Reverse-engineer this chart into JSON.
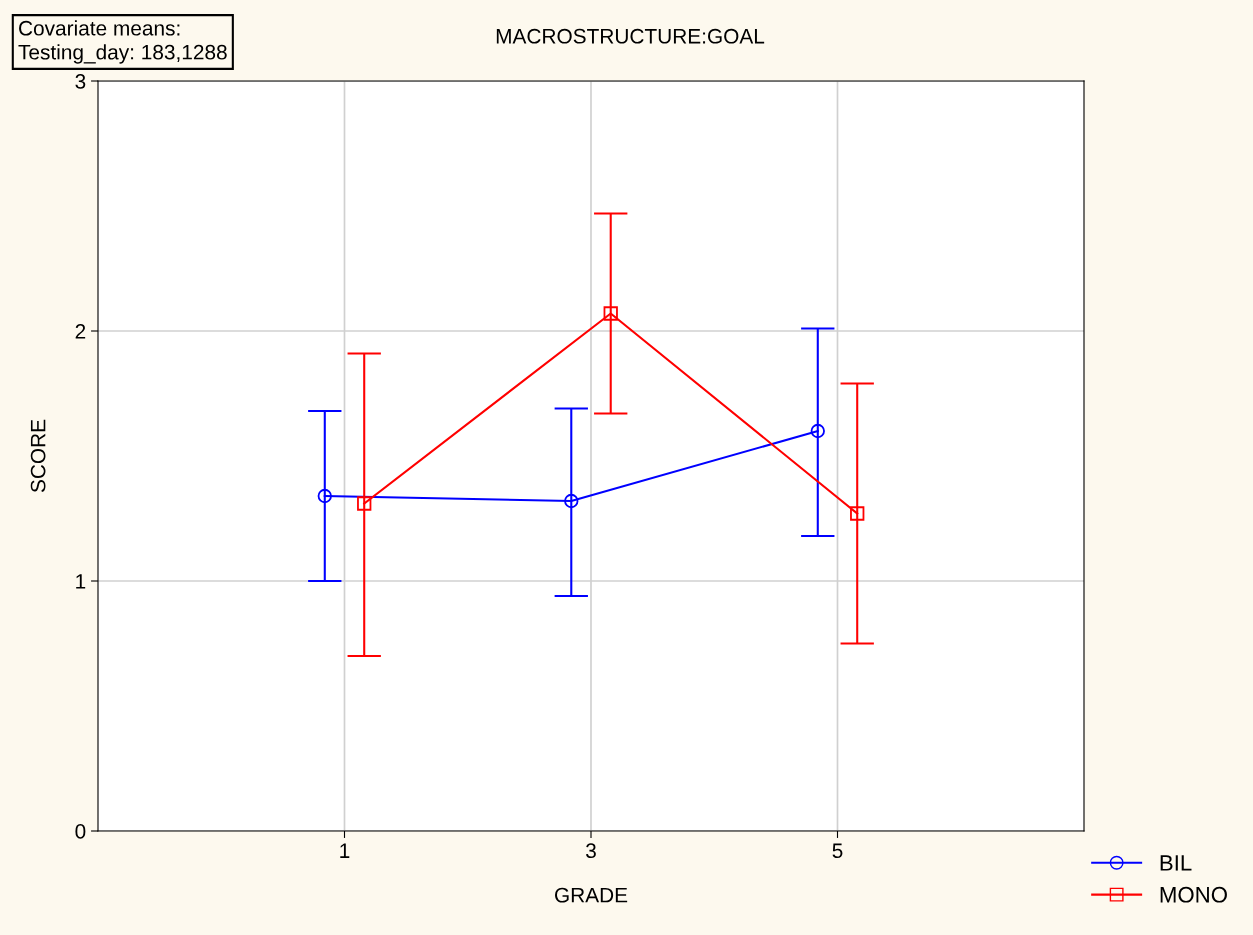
{
  "chart_data": {
    "type": "line",
    "title": "MACROSTRUCTURE:GOAL",
    "xlabel": "GRADE",
    "ylabel": "SCORE",
    "categories": [
      "1",
      "3",
      "5"
    ],
    "series": [
      {
        "name": "BIL",
        "color": "#0000ff",
        "marker": "circle",
        "values": [
          1.34,
          1.32,
          1.6
        ],
        "errors": [
          [
            1.0,
            1.68
          ],
          [
            0.94,
            1.69
          ],
          [
            1.18,
            2.01
          ]
        ]
      },
      {
        "name": "MONO",
        "color": "#ff0000",
        "marker": "square",
        "values": [
          1.31,
          2.07,
          1.27
        ],
        "errors": [
          [
            0.7,
            1.91
          ],
          [
            1.67,
            2.47
          ],
          [
            0.75,
            1.79
          ]
        ]
      }
    ],
    "ylim": [
      0,
      3
    ],
    "yticks": [
      0,
      1,
      2,
      3
    ],
    "grid": true,
    "legend": "bottom right",
    "line_style": "solid",
    "annotations": [
      "Covariate means:\nTesting_day: 183,1288"
    ]
  }
}
